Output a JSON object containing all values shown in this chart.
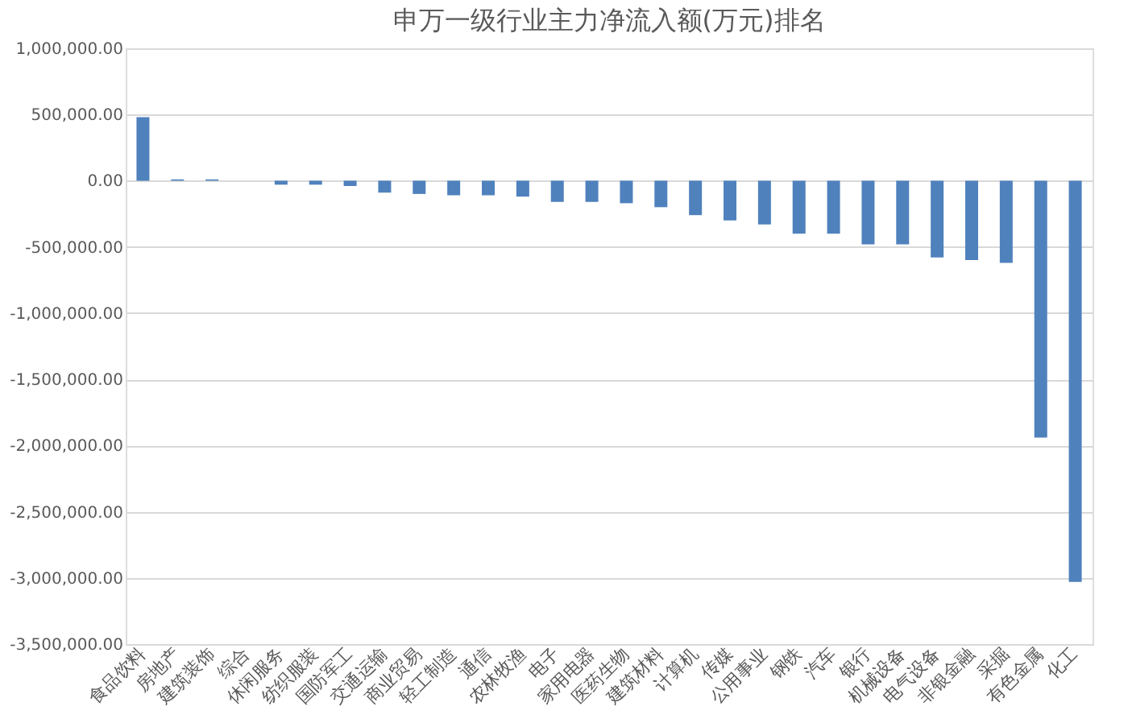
{
  "chart_data": {
    "type": "bar",
    "title": "申万一级行业主力净流入额(万元)排名",
    "categories": [
      "食品饮料",
      "房地产",
      "建筑装饰",
      "综合",
      "休闲服务",
      "纺织服装",
      "国防军工",
      "交通运输",
      "商业贸易",
      "轻工制造",
      "通信",
      "农林牧渔",
      "电子",
      "家用电器",
      "医药生物",
      "建筑材料",
      "计算机",
      "传媒",
      "公用事业",
      "钢铁",
      "汽车",
      "银行",
      "机械设备",
      "电气设备",
      "非银金融",
      "采掘",
      "有色金属",
      "化工"
    ],
    "values": [
      480000,
      10000,
      10000,
      0,
      -30000,
      -30000,
      -40000,
      -90000,
      -100000,
      -110000,
      -110000,
      -120000,
      -160000,
      -160000,
      -170000,
      -200000,
      -260000,
      -300000,
      -330000,
      -400000,
      -400000,
      -480000,
      -480000,
      -580000,
      -600000,
      -620000,
      -1940000,
      -3030000
    ],
    "color": "#4f81bd",
    "ylim": [
      -3500000,
      1000000
    ],
    "yticks": [
      {
        "value": -3500000,
        "label": "-3,500,000.00"
      },
      {
        "value": -3000000,
        "label": "-3,000,000.00"
      },
      {
        "value": -2500000,
        "label": "-2,500,000.00"
      },
      {
        "value": -2000000,
        "label": "-2,000,000.00"
      },
      {
        "value": -1500000,
        "label": "-1,500,000.00"
      },
      {
        "value": -1000000,
        "label": "-1,000,000.00"
      },
      {
        "value": -500000,
        "label": "-500,000.00"
      },
      {
        "value": 0,
        "label": "0.00"
      },
      {
        "value": 500000,
        "label": "500,000.00"
      },
      {
        "value": 1000000,
        "label": "1,000,000.00"
      }
    ],
    "grid": "y"
  }
}
